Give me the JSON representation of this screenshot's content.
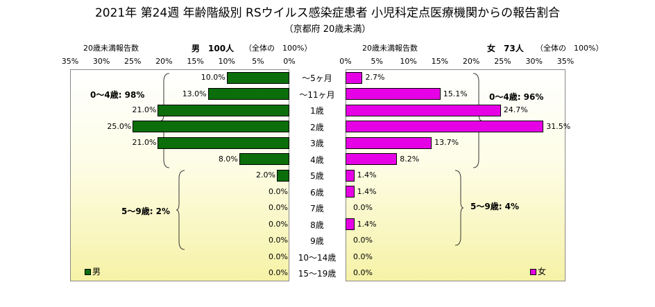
{
  "title": "2021年 第24週 年齢階級別 RSウイルス感染症患者 小児科定点医療機関からの報告割合",
  "subtitle": "（京都府 20歳未満）",
  "male_header": {
    "report_label": "20歳未満報告数",
    "count_label": "男　100人",
    "pct_label": "（全体の　100%）"
  },
  "female_header": {
    "report_label": "20歳未満報告数",
    "count_label": "女　73人",
    "pct_label": "（全体の　100%）"
  },
  "annotations": {
    "male_0_4": "0～4歳: 98%",
    "male_5_9": "5～9歳: 2%",
    "female_0_4": "0～4歳: 96%",
    "female_5_9": "5～9歳: 4%"
  },
  "legend": {
    "male": "男",
    "female": "女"
  },
  "colors": {
    "male": "#0b6e0b",
    "female": "#e600e6"
  },
  "chart_data": {
    "type": "bar",
    "orientation": "horizontal-butterfly",
    "categories": [
      "～5ヶ月",
      "～11ヶ月",
      "1歳",
      "2歳",
      "3歳",
      "4歳",
      "5歳",
      "6歳",
      "7歳",
      "8歳",
      "9歳",
      "10～14歳",
      "15～19歳"
    ],
    "series": [
      {
        "name": "男",
        "values": [
          10.0,
          13.0,
          21.0,
          25.0,
          21.0,
          8.0,
          2.0,
          0.0,
          0.0,
          0.0,
          0.0,
          0.0,
          0.0
        ],
        "labels": [
          "10.0%",
          "13.0%",
          "21.0%",
          "25.0%",
          "21.0%",
          "8.0%",
          "2.0%",
          "0.0%",
          "0.0%",
          "0.0%",
          "0.0%",
          "0.0%",
          "0.0%"
        ]
      },
      {
        "name": "女",
        "values": [
          2.7,
          15.1,
          24.7,
          31.5,
          13.7,
          8.2,
          1.4,
          1.4,
          0.0,
          1.4,
          0.0,
          0.0,
          0.0
        ],
        "labels": [
          "2.7%",
          "15.1%",
          "24.7%",
          "31.5%",
          "13.7%",
          "8.2%",
          "1.4%",
          "1.4%",
          "0.0%",
          "1.4%",
          "0.0%",
          "0.0%",
          "0.0%"
        ]
      }
    ],
    "male_ticks": [
      "35%",
      "30%",
      "25%",
      "20%",
      "15%",
      "10%",
      "5%",
      "0%"
    ],
    "female_ticks": [
      "0%",
      "5%",
      "10%",
      "15%",
      "20%",
      "25%",
      "30%",
      "35%"
    ],
    "xlim": [
      0,
      35
    ]
  }
}
